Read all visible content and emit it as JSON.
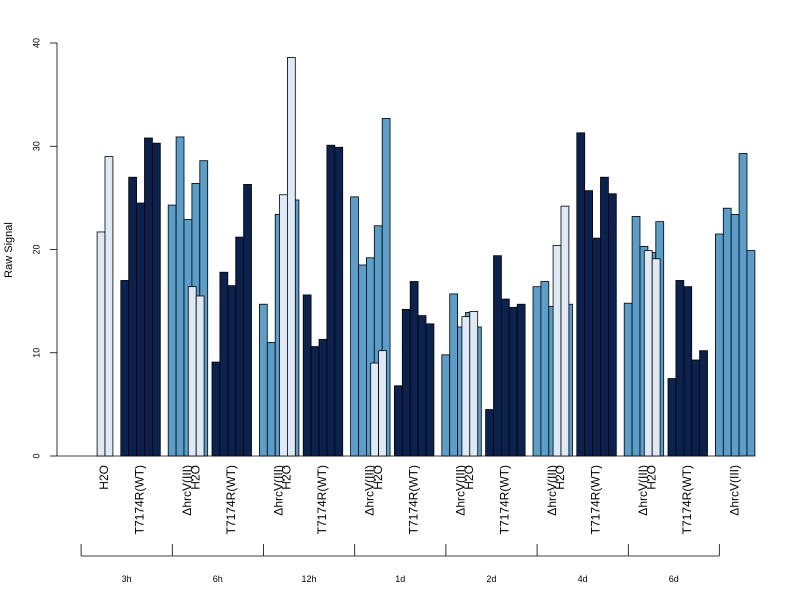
{
  "chart_data": {
    "type": "bar",
    "ylabel": "Raw Signal",
    "ylim": [
      0,
      40
    ],
    "yticks": [
      0,
      10,
      20,
      30,
      40
    ],
    "grid": false,
    "legend": "none",
    "groups": [
      {
        "label": "3h",
        "subgroups": [
          {
            "label": "H2O",
            "values": [
              21.7,
              29.0
            ]
          },
          {
            "label": "T7174R(WT)",
            "values": [
              17.0,
              27.0,
              24.5,
              30.8,
              30.3
            ]
          },
          {
            "label": "ΔhrcV(III)",
            "values": [
              24.3,
              30.9,
              22.9,
              26.4,
              28.6
            ]
          }
        ]
      },
      {
        "label": "6h",
        "subgroups": [
          {
            "label": "H2O",
            "values": [
              16.4,
              15.5
            ]
          },
          {
            "label": "T7174R(WT)",
            "values": [
              9.1,
              17.8,
              16.5,
              21.2,
              26.3
            ]
          },
          {
            "label": "ΔhrcV(III)",
            "values": [
              14.7,
              11.0,
              23.4,
              16.9,
              24.8
            ]
          }
        ]
      },
      {
        "label": "12h",
        "subgroups": [
          {
            "label": "H2O",
            "values": [
              25.3,
              38.6
            ]
          },
          {
            "label": "T7174R(WT)",
            "values": [
              15.6,
              10.6,
              11.3,
              30.1,
              29.9
            ]
          },
          {
            "label": "ΔhrcV(III)",
            "values": [
              25.1,
              18.5,
              19.2,
              22.3,
              32.7
            ]
          }
        ]
      },
      {
        "label": "1d",
        "subgroups": [
          {
            "label": "H2O",
            "values": [
              9.0,
              10.2
            ]
          },
          {
            "label": "T7174R(WT)",
            "values": [
              6.8,
              14.2,
              16.9,
              13.6,
              12.8
            ]
          },
          {
            "label": "ΔhrcV(III)",
            "values": [
              9.8,
              15.7,
              12.5,
              13.9,
              12.5
            ]
          }
        ]
      },
      {
        "label": "2d",
        "subgroups": [
          {
            "label": "H2O",
            "values": [
              13.5,
              14.0
            ]
          },
          {
            "label": "T7174R(WT)",
            "values": [
              4.5,
              19.4,
              15.2,
              14.4,
              14.7
            ]
          },
          {
            "label": "ΔhrcV(III)",
            "values": [
              16.4,
              16.9,
              14.5,
              12.3,
              14.7
            ]
          }
        ]
      },
      {
        "label": "4d",
        "subgroups": [
          {
            "label": "H2O",
            "values": [
              20.4,
              24.2
            ]
          },
          {
            "label": "T7174R(WT)",
            "values": [
              31.3,
              25.7,
              21.1,
              27.0,
              25.4
            ]
          },
          {
            "label": "ΔhrcV(III)",
            "values": [
              14.8,
              23.2,
              20.3,
              19.7,
              22.7
            ]
          }
        ]
      },
      {
        "label": "6d",
        "subgroups": [
          {
            "label": "H2O",
            "values": [
              19.9,
              19.1
            ]
          },
          {
            "label": "T7174R(WT)",
            "values": [
              7.5,
              17.0,
              16.4,
              9.3,
              10.2
            ]
          },
          {
            "label": "ΔhrcV(III)",
            "values": [
              21.5,
              24.0,
              23.4,
              29.3,
              19.9
            ]
          }
        ]
      }
    ],
    "subgroup_colors": {
      "H2O": "#dfe9f5",
      "T7174R(WT)": "#0b214e",
      "ΔhrcV(III)": "#5a9ec9"
    }
  }
}
